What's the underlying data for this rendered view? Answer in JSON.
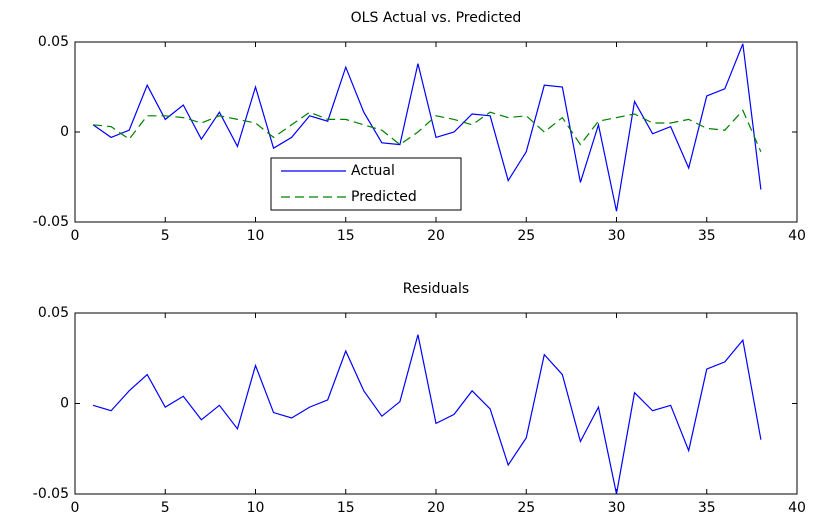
{
  "chart_data": [
    {
      "type": "line",
      "title": "OLS   Actual vs. Predicted",
      "x": [
        1,
        2,
        3,
        4,
        5,
        6,
        7,
        8,
        9,
        10,
        11,
        12,
        13,
        14,
        15,
        16,
        17,
        18,
        19,
        20,
        21,
        22,
        23,
        24,
        25,
        26,
        27,
        28,
        29,
        30,
        31,
        32,
        33,
        34,
        35,
        36,
        37,
        38
      ],
      "series": [
        {
          "name": "Actual",
          "color": "#0000ff",
          "dash": false,
          "values": [
            0.004,
            -0.003,
            0.001,
            0.026,
            0.007,
            0.015,
            -0.004,
            0.011,
            -0.008,
            0.025,
            -0.009,
            -0.003,
            0.009,
            0.006,
            0.036,
            0.011,
            -0.006,
            -0.007,
            0.038,
            -0.003,
            0,
            0.01,
            0.009,
            -0.027,
            -0.011,
            0.026,
            0.025,
            -0.028,
            0.004,
            -0.044,
            0.017,
            -0.001,
            0.003,
            -0.02,
            0.02,
            0.024,
            0.049,
            -0.032
          ]
        },
        {
          "name": "Predicted",
          "color": "#008000",
          "dash": true,
          "values": [
            0.004,
            0.003,
            -0.004,
            0.009,
            0.009,
            0.008,
            0.005,
            0.009,
            0.007,
            0.005,
            -0.003,
            0.004,
            0.011,
            0.007,
            0.007,
            0.004,
            0.001,
            -0.007,
            0,
            0.009,
            0.007,
            0.004,
            0.011,
            0.008,
            0.009,
            0,
            0.008,
            -0.007,
            0.006,
            0.008,
            0.01,
            0.005,
            0.005,
            0.007,
            0.002,
            0.001,
            0.012,
            -0.011
          ]
        }
      ],
      "xlim": [
        0,
        40
      ],
      "xticks": [
        0,
        5,
        10,
        15,
        20,
        25,
        30,
        35,
        40
      ],
      "ylim": [
        -0.05,
        0.05
      ],
      "yticks": [
        -0.05,
        0,
        0.05
      ],
      "legend": "lower center"
    },
    {
      "type": "line",
      "title": "Residuals",
      "x": [
        1,
        2,
        3,
        4,
        5,
        6,
        7,
        8,
        9,
        10,
        11,
        12,
        13,
        14,
        15,
        16,
        17,
        18,
        19,
        20,
        21,
        22,
        23,
        24,
        25,
        26,
        27,
        28,
        29,
        30,
        31,
        32,
        33,
        34,
        35,
        36,
        37,
        38
      ],
      "series": [
        {
          "color": "#0000ff",
          "dash": false,
          "values": [
            -0.001,
            -0.004,
            0.007,
            0.016,
            -0.002,
            0.004,
            -0.009,
            -0.001,
            -0.014,
            0.021,
            -0.005,
            -0.008,
            -0.002,
            0.002,
            0.029,
            0.007,
            -0.007,
            0.001,
            0.038,
            -0.011,
            -0.006,
            0.007,
            -0.003,
            -0.034,
            -0.019,
            0.027,
            0.016,
            -0.021,
            -0.002,
            -0.05,
            0.006,
            -0.004,
            -0.001,
            -0.026,
            0.019,
            0.023,
            0.035,
            -0.02
          ]
        }
      ],
      "xlim": [
        0,
        40
      ],
      "xticks": [
        0,
        5,
        10,
        15,
        20,
        25,
        30,
        35,
        40
      ],
      "ylim": [
        -0.05,
        0.05
      ],
      "yticks": [
        -0.05,
        0,
        0.05
      ]
    }
  ]
}
